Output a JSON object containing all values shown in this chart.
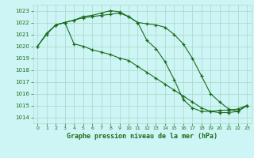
{
  "line1_x": [
    0,
    1,
    2,
    3,
    4,
    5,
    6,
    7,
    8,
    9,
    10,
    11,
    12,
    13,
    14,
    15,
    16,
    17,
    18,
    19,
    20,
    21,
    22,
    23
  ],
  "line1_y": [
    1020.0,
    1021.0,
    1021.8,
    1022.0,
    1022.2,
    1022.5,
    1022.6,
    1022.8,
    1023.0,
    1022.9,
    1022.5,
    1022.0,
    1020.5,
    1019.8,
    1018.7,
    1017.2,
    1015.5,
    1014.8,
    1014.5,
    1014.5,
    1014.6,
    1014.6,
    1014.7,
    1015.0
  ],
  "line2_x": [
    0,
    1,
    2,
    3,
    4,
    5,
    6,
    7,
    8,
    9,
    10,
    11,
    12,
    13,
    14,
    15,
    16,
    17,
    18,
    19,
    20,
    21,
    22,
    23
  ],
  "line2_y": [
    1020.0,
    1021.1,
    1021.8,
    1022.0,
    1020.2,
    1020.0,
    1019.7,
    1019.5,
    1019.3,
    1019.0,
    1018.8,
    1018.3,
    1017.8,
    1017.3,
    1016.8,
    1016.3,
    1015.8,
    1015.3,
    1014.8,
    1014.5,
    1014.4,
    1014.4,
    1014.5,
    1015.0
  ],
  "line3_x": [
    2,
    3,
    4,
    5,
    6,
    7,
    8,
    9,
    10,
    11,
    12,
    13,
    14,
    15,
    16,
    17,
    18,
    19,
    20,
    21,
    22,
    23
  ],
  "line3_y": [
    1021.8,
    1022.0,
    1022.2,
    1022.4,
    1022.5,
    1022.6,
    1022.7,
    1022.8,
    1022.5,
    1022.0,
    1021.9,
    1021.8,
    1021.6,
    1021.0,
    1020.2,
    1019.0,
    1017.5,
    1016.0,
    1015.3,
    1014.7,
    1014.5,
    1015.0
  ],
  "bg_color": "#cef5f5",
  "grid_color": "#aaddcc",
  "line_color": "#1a6b1a",
  "title": "Graphe pression niveau de la mer (hPa)",
  "ylim": [
    1013.5,
    1023.5
  ],
  "yticks": [
    1014,
    1015,
    1016,
    1017,
    1018,
    1019,
    1020,
    1021,
    1022,
    1023
  ],
  "xticks": [
    0,
    1,
    2,
    3,
    4,
    5,
    6,
    7,
    8,
    9,
    10,
    11,
    12,
    13,
    14,
    15,
    16,
    17,
    18,
    19,
    20,
    21,
    22,
    23
  ],
  "marker": "+"
}
